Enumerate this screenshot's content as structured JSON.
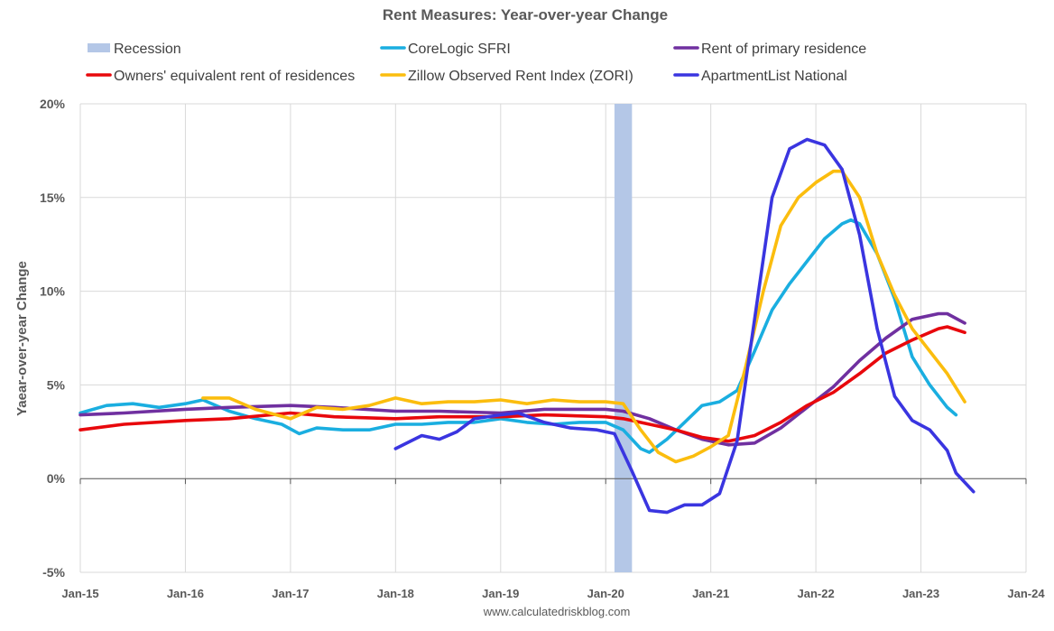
{
  "chart_data": {
    "type": "line",
    "title": "Rent Measures: Year-over-year Change",
    "ylabel": "Yaear-over-year Change",
    "xlabel": "",
    "source": "www.calculatedriskblog.com",
    "ylim": [
      -5,
      20
    ],
    "xlim": [
      "Jan-15",
      "Jan-24"
    ],
    "yticks": [
      "-5%",
      "0%",
      "5%",
      "10%",
      "15%",
      "20%"
    ],
    "yticks_values": [
      -5,
      0,
      5,
      10,
      15,
      20
    ],
    "xticks": [
      "Jan-15",
      "Jan-16",
      "Jan-17",
      "Jan-18",
      "Jan-19",
      "Jan-20",
      "Jan-21",
      "Jan-22",
      "Jan-23",
      "Jan-24"
    ],
    "grid": "vertical and horizontal",
    "legend_position": "top",
    "recession": {
      "name": "Recession",
      "start": "Feb-20",
      "end": "Apr-20",
      "color": "#b4c7e7"
    },
    "series": [
      {
        "name": "CoreLogic SFRI",
        "color": "#1aaee0",
        "points": [
          [
            "Jan-15",
            3.5
          ],
          [
            "Apr-15",
            3.9
          ],
          [
            "Jul-15",
            4.0
          ],
          [
            "Oct-15",
            3.8
          ],
          [
            "Jan-16",
            4.0
          ],
          [
            "Mar-16",
            4.2
          ],
          [
            "Jun-16",
            3.6
          ],
          [
            "Sep-16",
            3.2
          ],
          [
            "Dec-16",
            2.9
          ],
          [
            "Feb-17",
            2.4
          ],
          [
            "Apr-17",
            2.7
          ],
          [
            "Jul-17",
            2.6
          ],
          [
            "Oct-17",
            2.6
          ],
          [
            "Jan-18",
            2.9
          ],
          [
            "Apr-18",
            2.9
          ],
          [
            "Jul-18",
            3.0
          ],
          [
            "Oct-18",
            3.0
          ],
          [
            "Jan-19",
            3.2
          ],
          [
            "Apr-19",
            3.0
          ],
          [
            "Jul-19",
            2.9
          ],
          [
            "Oct-19",
            3.0
          ],
          [
            "Jan-20",
            3.0
          ],
          [
            "Mar-20",
            2.6
          ],
          [
            "May-20",
            1.6
          ],
          [
            "Jun-20",
            1.4
          ],
          [
            "Aug-20",
            2.1
          ],
          [
            "Oct-20",
            3.0
          ],
          [
            "Dec-20",
            3.9
          ],
          [
            "Feb-21",
            4.1
          ],
          [
            "Apr-21",
            4.7
          ],
          [
            "Jun-21",
            6.8
          ],
          [
            "Aug-21",
            9.0
          ],
          [
            "Oct-21",
            10.4
          ],
          [
            "Dec-21",
            11.6
          ],
          [
            "Feb-22",
            12.8
          ],
          [
            "Apr-22",
            13.6
          ],
          [
            "May-22",
            13.8
          ],
          [
            "Jun-22",
            13.6
          ],
          [
            "Aug-22",
            12.0
          ],
          [
            "Oct-22",
            9.6
          ],
          [
            "Dec-22",
            6.5
          ],
          [
            "Feb-23",
            5.0
          ],
          [
            "Apr-23",
            3.8
          ],
          [
            "May-23",
            3.4
          ]
        ]
      },
      {
        "name": "Rent of primary residence",
        "color": "#7030a0",
        "points": [
          [
            "Jan-15",
            3.4
          ],
          [
            "Jun-15",
            3.5
          ],
          [
            "Jan-16",
            3.7
          ],
          [
            "Jun-16",
            3.8
          ],
          [
            "Jan-17",
            3.9
          ],
          [
            "Jun-17",
            3.8
          ],
          [
            "Jan-18",
            3.6
          ],
          [
            "Jun-18",
            3.6
          ],
          [
            "Jan-19",
            3.5
          ],
          [
            "Jun-19",
            3.7
          ],
          [
            "Jan-20",
            3.7
          ],
          [
            "Mar-20",
            3.6
          ],
          [
            "Jun-20",
            3.2
          ],
          [
            "Sep-20",
            2.6
          ],
          [
            "Dec-20",
            2.1
          ],
          [
            "Mar-21",
            1.8
          ],
          [
            "Jun-21",
            1.9
          ],
          [
            "Sep-21",
            2.7
          ],
          [
            "Dec-21",
            3.8
          ],
          [
            "Mar-22",
            4.9
          ],
          [
            "Jun-22",
            6.3
          ],
          [
            "Sep-22",
            7.5
          ],
          [
            "Dec-22",
            8.5
          ],
          [
            "Mar-23",
            8.8
          ],
          [
            "Apr-23",
            8.8
          ],
          [
            "Jun-23",
            8.3
          ]
        ]
      },
      {
        "name": "Owners' equivalent rent of residences",
        "color": "#e8080c",
        "points": [
          [
            "Jan-15",
            2.6
          ],
          [
            "Jun-15",
            2.9
          ],
          [
            "Jan-16",
            3.1
          ],
          [
            "Jun-16",
            3.2
          ],
          [
            "Jan-17",
            3.5
          ],
          [
            "Jun-17",
            3.3
          ],
          [
            "Jan-18",
            3.2
          ],
          [
            "Jun-18",
            3.3
          ],
          [
            "Jan-19",
            3.3
          ],
          [
            "Jun-19",
            3.4
          ],
          [
            "Jan-20",
            3.3
          ],
          [
            "Mar-20",
            3.2
          ],
          [
            "Jun-20",
            2.9
          ],
          [
            "Sep-20",
            2.6
          ],
          [
            "Dec-20",
            2.2
          ],
          [
            "Mar-21",
            2.0
          ],
          [
            "Jun-21",
            2.3
          ],
          [
            "Sep-21",
            3.0
          ],
          [
            "Dec-21",
            3.9
          ],
          [
            "Mar-22",
            4.6
          ],
          [
            "Jun-22",
            5.6
          ],
          [
            "Sep-22",
            6.7
          ],
          [
            "Dec-22",
            7.4
          ],
          [
            "Mar-23",
            8.0
          ],
          [
            "Apr-23",
            8.1
          ],
          [
            "Jun-23",
            7.8
          ]
        ]
      },
      {
        "name": "Zillow Observed Rent Index (ZORI)",
        "color": "#fbbd0e",
        "points": [
          [
            "Mar-16",
            4.3
          ],
          [
            "Jun-16",
            4.3
          ],
          [
            "Sep-16",
            3.7
          ],
          [
            "Jan-17",
            3.2
          ],
          [
            "Apr-17",
            3.8
          ],
          [
            "Jul-17",
            3.7
          ],
          [
            "Oct-17",
            3.9
          ],
          [
            "Jan-18",
            4.3
          ],
          [
            "Apr-18",
            4.0
          ],
          [
            "Jul-18",
            4.1
          ],
          [
            "Oct-18",
            4.1
          ],
          [
            "Jan-19",
            4.2
          ],
          [
            "Apr-19",
            4.0
          ],
          [
            "Jul-19",
            4.2
          ],
          [
            "Oct-19",
            4.1
          ],
          [
            "Jan-20",
            4.1
          ],
          [
            "Mar-20",
            4.0
          ],
          [
            "May-20",
            2.6
          ],
          [
            "Jul-20",
            1.4
          ],
          [
            "Sep-20",
            0.9
          ],
          [
            "Nov-20",
            1.2
          ],
          [
            "Jan-21",
            1.7
          ],
          [
            "Mar-21",
            2.3
          ],
          [
            "May-21",
            6.0
          ],
          [
            "Jul-21",
            10.0
          ],
          [
            "Sep-21",
            13.5
          ],
          [
            "Nov-21",
            15.0
          ],
          [
            "Jan-22",
            15.8
          ],
          [
            "Mar-22",
            16.4
          ],
          [
            "Apr-22",
            16.4
          ],
          [
            "Jun-22",
            15.0
          ],
          [
            "Aug-22",
            12.0
          ],
          [
            "Oct-22",
            9.8
          ],
          [
            "Dec-22",
            8.0
          ],
          [
            "Feb-23",
            6.8
          ],
          [
            "Apr-23",
            5.6
          ],
          [
            "Jun-23",
            4.1
          ]
        ]
      },
      {
        "name": "ApartmentList National",
        "color": "#3a35e0",
        "points": [
          [
            "Jan-18",
            1.6
          ],
          [
            "Apr-18",
            2.3
          ],
          [
            "Jun-18",
            2.1
          ],
          [
            "Aug-18",
            2.5
          ],
          [
            "Oct-18",
            3.2
          ],
          [
            "Jan-19",
            3.4
          ],
          [
            "Mar-19",
            3.5
          ],
          [
            "Jun-19",
            3.0
          ],
          [
            "Sep-19",
            2.7
          ],
          [
            "Dec-19",
            2.6
          ],
          [
            "Feb-20",
            2.4
          ],
          [
            "Apr-20",
            0.4
          ],
          [
            "Jun-20",
            -1.7
          ],
          [
            "Aug-20",
            -1.8
          ],
          [
            "Oct-20",
            -1.4
          ],
          [
            "Dec-20",
            -1.4
          ],
          [
            "Feb-21",
            -0.8
          ],
          [
            "Apr-21",
            2.0
          ],
          [
            "Jun-21",
            8.5
          ],
          [
            "Aug-21",
            15.0
          ],
          [
            "Oct-21",
            17.6
          ],
          [
            "Dec-21",
            18.1
          ],
          [
            "Feb-22",
            17.8
          ],
          [
            "Apr-22",
            16.5
          ],
          [
            "Jun-22",
            13.0
          ],
          [
            "Aug-22",
            8.0
          ],
          [
            "Oct-22",
            4.4
          ],
          [
            "Dec-22",
            3.1
          ],
          [
            "Feb-23",
            2.6
          ],
          [
            "Apr-23",
            1.5
          ],
          [
            "May-23",
            0.3
          ],
          [
            "Jul-23",
            -0.7
          ]
        ]
      }
    ]
  }
}
